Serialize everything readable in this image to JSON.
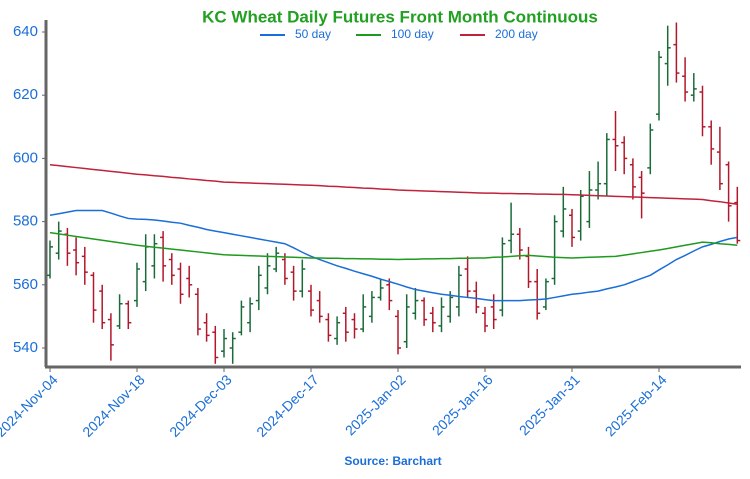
{
  "chart_data": {
    "type": "ohlc",
    "title": "KC Wheat Daily Futures Front Month Continuous",
    "source": "Source: Barchart",
    "categories": [
      "2024-Nov-04",
      null,
      null,
      null,
      null,
      null,
      null,
      null,
      null,
      null,
      "2024-Nov-18",
      null,
      null,
      null,
      null,
      null,
      null,
      null,
      null,
      null,
      "2024-Dec-03",
      null,
      null,
      null,
      null,
      null,
      null,
      null,
      null,
      null,
      "2024-Dec-17",
      null,
      null,
      null,
      null,
      null,
      null,
      null,
      null,
      null,
      "2025-Jan-02",
      null,
      null,
      null,
      null,
      null,
      null,
      null,
      null,
      null,
      "2025-Jan-16",
      null,
      null,
      null,
      null,
      null,
      null,
      null,
      null,
      null,
      "2025-Jan-31",
      null,
      null,
      null,
      null,
      null,
      null,
      null,
      null,
      null,
      "2025-Feb-14",
      null,
      null,
      null,
      null,
      null,
      null,
      null,
      null,
      null
    ],
    "ohlc": {
      "up_color": "#1b6b3a",
      "down_color": "#b2182b",
      "open": [
        563,
        570,
        576,
        571,
        569,
        563,
        558,
        549,
        547,
        554,
        555,
        561,
        566,
        575,
        568,
        565,
        562,
        557,
        548,
        545,
        539,
        540,
        545,
        548,
        555,
        559,
        565,
        568,
        564,
        558,
        558,
        555,
        549,
        543,
        551,
        549,
        546,
        550,
        556,
        560,
        550,
        542,
        551,
        555,
        551,
        547,
        550,
        553,
        565,
        558,
        551,
        553,
        552,
        574,
        576,
        569,
        561,
        553,
        562,
        577,
        582,
        577,
        580,
        590,
        592,
        606,
        605,
        598,
        594,
        597,
        614,
        630,
        636,
        626,
        620,
        621,
        610,
        602,
        598,
        586
      ],
      "high": [
        574,
        580,
        578,
        575,
        572,
        564,
        560,
        551,
        557,
        555,
        567,
        576,
        576,
        577,
        570,
        567,
        566,
        559,
        551,
        547,
        546,
        545,
        555,
        556,
        566,
        570,
        572,
        570,
        566,
        568,
        560,
        558,
        551,
        550,
        553,
        551,
        557,
        558,
        562,
        562,
        552,
        557,
        559,
        556,
        553,
        556,
        558,
        566,
        569,
        561,
        553,
        557,
        575,
        586,
        578,
        572,
        565,
        562,
        582,
        591,
        584,
        590,
        596,
        599,
        608,
        615,
        607,
        600,
        596,
        611,
        634,
        642,
        643,
        632,
        627,
        623,
        612,
        610,
        599,
        591
      ],
      "low": [
        562,
        568,
        566,
        563,
        560,
        548,
        546,
        536,
        546,
        546,
        553,
        558,
        562,
        561,
        560,
        554,
        556,
        544,
        542,
        535,
        537,
        535,
        544,
        545,
        552,
        557,
        564,
        560,
        555,
        556,
        550,
        548,
        542,
        541,
        542,
        543,
        545,
        548,
        555,
        552,
        538,
        540,
        549,
        547,
        545,
        545,
        548,
        550,
        556,
        551,
        545,
        546,
        550,
        570,
        568,
        559,
        549,
        552,
        560,
        575,
        572,
        574,
        578,
        587,
        588,
        596,
        595,
        587,
        581,
        595,
        612,
        623,
        624,
        618,
        618,
        607,
        598,
        590,
        580,
        573
      ],
      "close": [
        572,
        577,
        570,
        567,
        564,
        552,
        548,
        541,
        554,
        548,
        565,
        572,
        573,
        566,
        563,
        557,
        560,
        546,
        544,
        537,
        543,
        543,
        553,
        554,
        563,
        566,
        570,
        562,
        558,
        565,
        552,
        550,
        544,
        548,
        545,
        546,
        553,
        556,
        559,
        555,
        540,
        553,
        555,
        549,
        548,
        553,
        556,
        563,
        558,
        553,
        547,
        549,
        573,
        576,
        571,
        561,
        551,
        561,
        580,
        584,
        575,
        588,
        590,
        592,
        606,
        604,
        600,
        591,
        589,
        609,
        632,
        635,
        627,
        621,
        622,
        610,
        603,
        592,
        585,
        574
      ]
    },
    "series": [
      {
        "name": "50 day",
        "color": "#1a6ed8",
        "values": [
          582,
          582.5,
          583,
          583.5,
          583.5,
          583.5,
          583.5,
          582.7,
          581.8,
          581,
          580.8,
          580.7,
          580.5,
          580.2,
          579.8,
          579.5,
          578.8,
          578.2,
          577.5,
          577,
          576.5,
          576,
          575.5,
          575,
          574.5,
          574,
          573.5,
          573,
          571.7,
          570.3,
          569,
          568,
          567,
          566,
          565.2,
          564.3,
          563.5,
          562.7,
          561.8,
          561,
          560.2,
          559.3,
          558.5,
          558,
          557.5,
          557,
          556.7,
          556.3,
          556,
          555.7,
          555.3,
          555,
          555,
          555,
          555,
          555.2,
          555.3,
          555.5,
          556,
          556.5,
          557,
          557.3,
          557.7,
          558,
          558.7,
          559.3,
          560,
          561,
          562,
          563,
          564.7,
          566.3,
          568,
          569.3,
          570.7,
          572,
          572.8,
          573.7,
          574.5,
          575
        ]
      },
      {
        "name": "100 day",
        "color": "#1e9a1e",
        "values": [
          576.5,
          576.1,
          575.7,
          575.3,
          574.9,
          574.5,
          574.1,
          573.7,
          573.3,
          572.9,
          572.5,
          572.2,
          571.9,
          571.6,
          571.3,
          571,
          570.7,
          570.4,
          570.1,
          569.8,
          569.5,
          569.4,
          569.3,
          569.2,
          569.1,
          569,
          568.9,
          568.8,
          568.7,
          568.6,
          568.5,
          568.5,
          568.4,
          568.4,
          568.3,
          568.3,
          568.2,
          568.2,
          568.1,
          568.1,
          568,
          568.1,
          568.1,
          568.2,
          568.2,
          568.3,
          568.3,
          568.4,
          568.4,
          568.5,
          568.5,
          568.7,
          568.8,
          569,
          569.2,
          569.3,
          569.1,
          568.9,
          568.7,
          568.6,
          568.5,
          568.6,
          568.7,
          568.8,
          568.9,
          569,
          569.4,
          569.8,
          570.2,
          570.6,
          571,
          571.5,
          572,
          572.5,
          573,
          573.5,
          573.3,
          573,
          572.8,
          572.5
        ]
      },
      {
        "name": "200 day",
        "color": "#c0223b",
        "values": [
          598,
          597.7,
          597.4,
          597.1,
          596.8,
          596.5,
          596.2,
          595.9,
          595.6,
          595.3,
          595,
          594.8,
          594.5,
          594.3,
          594,
          593.8,
          593.5,
          593.3,
          593,
          592.8,
          592.5,
          592.4,
          592.3,
          592.2,
          592.1,
          592,
          591.9,
          591.8,
          591.7,
          591.6,
          591.5,
          591.4,
          591.2,
          591.1,
          590.9,
          590.8,
          590.6,
          590.5,
          590.3,
          590.2,
          590,
          589.9,
          589.8,
          589.7,
          589.6,
          589.5,
          589.4,
          589.3,
          589.2,
          589.1,
          589,
          589,
          588.9,
          588.9,
          588.8,
          588.8,
          588.7,
          588.7,
          588.6,
          588.6,
          588.5,
          588.4,
          588.3,
          588.2,
          588.1,
          588,
          587.9,
          587.8,
          587.7,
          587.6,
          587.5,
          587.4,
          587.3,
          587.2,
          587.1,
          587,
          586.6,
          586.3,
          585.9,
          585.5
        ]
      }
    ],
    "ylim": [
      534,
      644
    ],
    "yticks": [
      540,
      560,
      580,
      600,
      620,
      640
    ]
  }
}
